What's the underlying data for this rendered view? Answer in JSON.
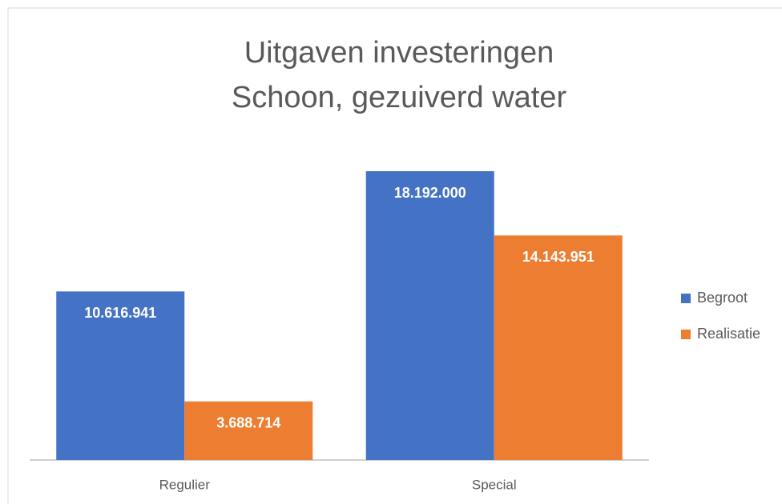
{
  "chart_data": {
    "type": "bar",
    "title": [
      "Uitgaven investeringen",
      "Schoon, gezuiverd water"
    ],
    "categories": [
      "Regulier",
      "Special"
    ],
    "series": [
      {
        "name": "Begroot",
        "color": "#4472c4",
        "values": [
          10616941,
          18192000
        ],
        "value_labels": [
          "10.616.941",
          "18.192.000"
        ]
      },
      {
        "name": "Realisatie",
        "color": "#ed7d31",
        "values": [
          3688714,
          14143951
        ],
        "value_labels": [
          "3.688.714",
          "14.143.951"
        ]
      }
    ],
    "legend": "right"
  }
}
